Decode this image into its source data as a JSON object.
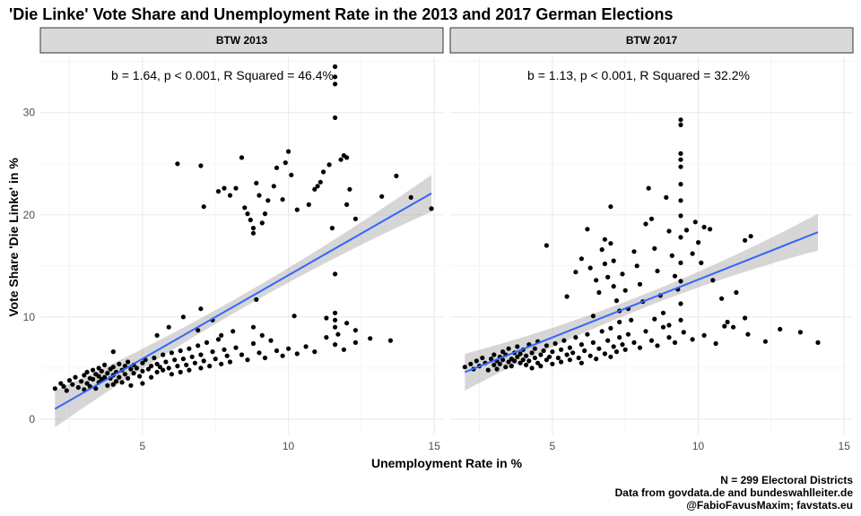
{
  "title": "'Die Linke' Vote Share and Unemployment Rate in the 2013 and 2017 German Elections",
  "caption_lines": [
    "N = 299 Electoral Districts",
    "Data from govdata.de and bundeswahlleiter.de",
    "@FabioFavusMaxim; favstats.eu"
  ],
  "chart_data": [
    {
      "type": "scatter",
      "title": "BTW 2013",
      "xlabel": "Unemployment Rate in %",
      "ylabel": "Vote Share 'Die Linke' in %",
      "xlim": [
        1.5,
        15.3
      ],
      "ylim": [
        -1.5,
        35.5
      ],
      "xticks": [
        5,
        10,
        15
      ],
      "yticks": [
        0,
        10,
        20,
        30
      ],
      "annotation": "b = 1.64, p < 0.001, R Squared = 46.4%",
      "fit_line": {
        "x": [
          2.0,
          14.9
        ],
        "y": [
          1.0,
          22.1
        ]
      },
      "colors": {
        "points": "#000000",
        "fit": "#3366ff",
        "band": "#999999"
      },
      "points": [
        [
          2.0,
          3.0
        ],
        [
          2.2,
          3.5
        ],
        [
          2.3,
          3.2
        ],
        [
          2.4,
          2.8
        ],
        [
          2.5,
          3.8
        ],
        [
          2.6,
          3.4
        ],
        [
          2.7,
          4.1
        ],
        [
          2.8,
          3.1
        ],
        [
          2.9,
          3.7
        ],
        [
          3.0,
          4.3
        ],
        [
          3.0,
          2.9
        ],
        [
          3.1,
          4.6
        ],
        [
          3.1,
          3.5
        ],
        [
          3.2,
          4.0
        ],
        [
          3.2,
          3.2
        ],
        [
          3.3,
          4.8
        ],
        [
          3.3,
          3.9
        ],
        [
          3.4,
          4.4
        ],
        [
          3.4,
          3.0
        ],
        [
          3.5,
          5.0
        ],
        [
          3.5,
          4.2
        ],
        [
          3.5,
          3.6
        ],
        [
          3.6,
          4.7
        ],
        [
          3.6,
          3.9
        ],
        [
          3.7,
          5.3
        ],
        [
          3.7,
          4.1
        ],
        [
          3.8,
          4.5
        ],
        [
          3.8,
          3.3
        ],
        [
          3.9,
          4.9
        ],
        [
          3.9,
          4.0
        ],
        [
          4.0,
          5.1
        ],
        [
          4.0,
          4.3
        ],
        [
          4.0,
          3.4
        ],
        [
          4.1,
          4.6
        ],
        [
          4.1,
          3.7
        ],
        [
          4.2,
          5.4
        ],
        [
          4.2,
          4.1
        ],
        [
          4.3,
          4.8
        ],
        [
          4.3,
          3.6
        ],
        [
          4.4,
          5.2
        ],
        [
          4.4,
          4.4
        ],
        [
          4.5,
          5.6
        ],
        [
          4.5,
          4.0
        ],
        [
          4.6,
          4.9
        ],
        [
          4.6,
          3.3
        ],
        [
          4.7,
          5.3
        ],
        [
          4.7,
          4.5
        ],
        [
          4.8,
          5.0
        ],
        [
          4.9,
          4.2
        ],
        [
          5.0,
          5.5
        ],
        [
          5.0,
          4.7
        ],
        [
          5.0,
          3.5
        ],
        [
          5.1,
          5.8
        ],
        [
          5.2,
          4.9
        ],
        [
          5.3,
          5.2
        ],
        [
          5.3,
          4.1
        ],
        [
          5.4,
          6.0
        ],
        [
          5.5,
          5.4
        ],
        [
          5.5,
          4.6
        ],
        [
          5.6,
          5.1
        ],
        [
          5.7,
          6.3
        ],
        [
          5.7,
          4.8
        ],
        [
          5.8,
          5.6
        ],
        [
          5.9,
          5.0
        ],
        [
          6.0,
          6.5
        ],
        [
          6.0,
          4.4
        ],
        [
          6.1,
          5.8
        ],
        [
          6.2,
          5.2
        ],
        [
          6.3,
          6.7
        ],
        [
          6.3,
          4.6
        ],
        [
          6.4,
          5.9
        ],
        [
          6.5,
          5.3
        ],
        [
          6.6,
          6.9
        ],
        [
          6.6,
          4.8
        ],
        [
          6.7,
          6.1
        ],
        [
          6.8,
          5.5
        ],
        [
          6.9,
          7.2
        ],
        [
          7.0,
          5.0
        ],
        [
          7.0,
          6.3
        ],
        [
          7.1,
          5.7
        ],
        [
          7.2,
          7.5
        ],
        [
          7.3,
          5.2
        ],
        [
          7.4,
          6.6
        ],
        [
          7.5,
          5.9
        ],
        [
          7.6,
          7.8
        ],
        [
          7.7,
          5.4
        ],
        [
          7.8,
          6.8
        ],
        [
          7.9,
          6.2
        ],
        [
          8.0,
          5.6
        ],
        [
          8.2,
          7.0
        ],
        [
          8.4,
          6.3
        ],
        [
          8.6,
          5.8
        ],
        [
          8.8,
          7.4
        ],
        [
          9.0,
          6.5
        ],
        [
          9.2,
          6.0
        ],
        [
          9.4,
          7.7
        ],
        [
          9.6,
          6.7
        ],
        [
          9.8,
          6.2
        ],
        [
          10.0,
          6.9
        ],
        [
          10.3,
          6.4
        ],
        [
          10.6,
          7.1
        ],
        [
          10.9,
          6.6
        ],
        [
          11.3,
          8.0
        ],
        [
          11.6,
          7.3
        ],
        [
          11.9,
          6.8
        ],
        [
          12.3,
          7.5
        ],
        [
          12.8,
          7.9
        ],
        [
          13.5,
          7.7
        ],
        [
          5.5,
          8.2
        ],
        [
          5.9,
          9.0
        ],
        [
          6.4,
          10.0
        ],
        [
          7.0,
          10.8
        ],
        [
          7.4,
          9.7
        ],
        [
          6.9,
          8.7
        ],
        [
          7.7,
          8.2
        ],
        [
          8.1,
          8.6
        ],
        [
          8.8,
          9.0
        ],
        [
          9.1,
          8.2
        ],
        [
          10.2,
          10.1
        ],
        [
          11.6,
          10.4
        ],
        [
          11.6,
          9.7
        ],
        [
          11.6,
          9.0
        ],
        [
          11.7,
          8.3
        ],
        [
          12.0,
          9.4
        ],
        [
          12.3,
          8.7
        ],
        [
          11.3,
          9.9
        ],
        [
          8.9,
          11.7
        ],
        [
          4.0,
          6.6
        ],
        [
          6.2,
          25.0
        ],
        [
          7.0,
          24.8
        ],
        [
          7.1,
          20.8
        ],
        [
          7.6,
          22.3
        ],
        [
          7.8,
          22.6
        ],
        [
          8.0,
          21.9
        ],
        [
          8.2,
          22.6
        ],
        [
          8.4,
          25.6
        ],
        [
          8.5,
          20.7
        ],
        [
          8.6,
          20.1
        ],
        [
          8.7,
          19.5
        ],
        [
          8.8,
          18.7
        ],
        [
          8.8,
          18.2
        ],
        [
          8.9,
          23.1
        ],
        [
          9.0,
          21.9
        ],
        [
          9.1,
          19.2
        ],
        [
          9.2,
          20.1
        ],
        [
          9.3,
          21.4
        ],
        [
          9.5,
          22.8
        ],
        [
          9.6,
          24.6
        ],
        [
          9.8,
          21.5
        ],
        [
          9.9,
          25.1
        ],
        [
          10.0,
          26.2
        ],
        [
          10.1,
          23.9
        ],
        [
          10.3,
          20.5
        ],
        [
          10.7,
          21.0
        ],
        [
          10.9,
          22.5
        ],
        [
          11.0,
          22.8
        ],
        [
          11.1,
          23.2
        ],
        [
          11.2,
          24.2
        ],
        [
          11.4,
          24.9
        ],
        [
          11.5,
          18.7
        ],
        [
          11.6,
          29.5
        ],
        [
          11.6,
          32.8
        ],
        [
          11.6,
          33.5
        ],
        [
          11.6,
          34.5
        ],
        [
          11.8,
          25.4
        ],
        [
          11.9,
          25.8
        ],
        [
          12.0,
          25.6
        ],
        [
          12.1,
          22.5
        ],
        [
          12.3,
          19.6
        ],
        [
          12.0,
          21.0
        ],
        [
          13.2,
          21.8
        ],
        [
          13.7,
          23.8
        ],
        [
          14.2,
          21.7
        ],
        [
          14.9,
          20.6
        ],
        [
          11.6,
          14.2
        ]
      ]
    },
    {
      "type": "scatter",
      "title": "BTW 2017",
      "xlabel": "Unemployment Rate in %",
      "ylabel": "Vote Share 'Die Linke' in %",
      "xlim": [
        1.5,
        15.3
      ],
      "ylim": [
        -1.5,
        35.5
      ],
      "xticks": [
        5,
        10,
        15
      ],
      "yticks": [
        0,
        10,
        20,
        30
      ],
      "annotation": "b = 1.13, p < 0.001, R Squared = 32.2%",
      "fit_line": {
        "x": [
          2.0,
          14.1
        ],
        "y": [
          4.6,
          18.3
        ]
      },
      "colors": {
        "points": "#000000",
        "fit": "#3366ff",
        "band": "#999999"
      },
      "points": [
        [
          2.0,
          5.1
        ],
        [
          2.2,
          5.4
        ],
        [
          2.3,
          4.9
        ],
        [
          2.4,
          5.7
        ],
        [
          2.5,
          5.2
        ],
        [
          2.6,
          6.0
        ],
        [
          2.7,
          5.5
        ],
        [
          2.8,
          4.8
        ],
        [
          2.9,
          5.9
        ],
        [
          3.0,
          5.3
        ],
        [
          3.0,
          6.3
        ],
        [
          3.1,
          5.7
        ],
        [
          3.1,
          4.9
        ],
        [
          3.2,
          6.1
        ],
        [
          3.2,
          5.4
        ],
        [
          3.3,
          6.6
        ],
        [
          3.3,
          5.8
        ],
        [
          3.4,
          5.1
        ],
        [
          3.4,
          6.3
        ],
        [
          3.5,
          5.6
        ],
        [
          3.5,
          6.9
        ],
        [
          3.6,
          5.9
        ],
        [
          3.6,
          5.2
        ],
        [
          3.7,
          6.5
        ],
        [
          3.7,
          5.7
        ],
        [
          3.8,
          6.1
        ],
        [
          3.8,
          7.1
        ],
        [
          3.9,
          5.5
        ],
        [
          3.9,
          6.4
        ],
        [
          4.0,
          5.8
        ],
        [
          4.0,
          6.8
        ],
        [
          4.1,
          5.3
        ],
        [
          4.1,
          6.2
        ],
        [
          4.2,
          7.3
        ],
        [
          4.2,
          5.7
        ],
        [
          4.3,
          6.5
        ],
        [
          4.3,
          5.0
        ],
        [
          4.4,
          6.0
        ],
        [
          4.4,
          6.9
        ],
        [
          4.5,
          5.5
        ],
        [
          4.5,
          7.6
        ],
        [
          4.6,
          6.3
        ],
        [
          4.6,
          5.2
        ],
        [
          4.7,
          6.7
        ],
        [
          4.8,
          5.8
        ],
        [
          4.8,
          7.2
        ],
        [
          4.9,
          6.1
        ],
        [
          5.0,
          6.6
        ],
        [
          5.0,
          5.4
        ],
        [
          5.1,
          7.4
        ],
        [
          5.2,
          6.0
        ],
        [
          5.3,
          6.8
        ],
        [
          5.3,
          5.6
        ],
        [
          5.4,
          7.7
        ],
        [
          5.5,
          6.3
        ],
        [
          5.6,
          5.8
        ],
        [
          5.6,
          7.0
        ],
        [
          5.7,
          6.5
        ],
        [
          5.8,
          8.0
        ],
        [
          5.9,
          6.0
        ],
        [
          6.0,
          7.3
        ],
        [
          6.0,
          5.5
        ],
        [
          6.1,
          6.7
        ],
        [
          6.2,
          8.3
        ],
        [
          6.3,
          6.2
        ],
        [
          6.4,
          7.5
        ],
        [
          6.5,
          5.9
        ],
        [
          6.6,
          6.9
        ],
        [
          6.7,
          8.6
        ],
        [
          6.8,
          6.4
        ],
        [
          6.9,
          7.7
        ],
        [
          7.0,
          6.1
        ],
        [
          7.0,
          8.9
        ],
        [
          7.1,
          7.1
        ],
        [
          7.2,
          6.6
        ],
        [
          7.3,
          8.0
        ],
        [
          7.4,
          7.3
        ],
        [
          7.5,
          6.8
        ],
        [
          7.6,
          8.3
        ],
        [
          7.8,
          7.5
        ],
        [
          8.0,
          7.0
        ],
        [
          8.2,
          8.6
        ],
        [
          8.4,
          7.7
        ],
        [
          8.6,
          7.2
        ],
        [
          8.8,
          9.0
        ],
        [
          9.0,
          8.0
        ],
        [
          9.2,
          7.5
        ],
        [
          9.5,
          8.5
        ],
        [
          9.8,
          7.8
        ],
        [
          10.2,
          8.2
        ],
        [
          10.6,
          7.4
        ],
        [
          11.2,
          9.0
        ],
        [
          11.7,
          8.3
        ],
        [
          12.3,
          7.6
        ],
        [
          12.8,
          8.8
        ],
        [
          13.5,
          8.5
        ],
        [
          14.1,
          7.5
        ],
        [
          4.8,
          17.0
        ],
        [
          5.5,
          12.0
        ],
        [
          5.8,
          14.4
        ],
        [
          6.0,
          15.7
        ],
        [
          6.2,
          18.6
        ],
        [
          6.3,
          14.8
        ],
        [
          6.5,
          13.6
        ],
        [
          6.6,
          12.4
        ],
        [
          6.7,
          16.6
        ],
        [
          6.8,
          17.6
        ],
        [
          6.8,
          15.2
        ],
        [
          6.9,
          13.9
        ],
        [
          7.0,
          20.8
        ],
        [
          7.0,
          17.2
        ],
        [
          7.1,
          15.5
        ],
        [
          7.1,
          13.0
        ],
        [
          7.2,
          11.6
        ],
        [
          7.3,
          10.6
        ],
        [
          7.3,
          9.5
        ],
        [
          7.4,
          14.2
        ],
        [
          7.5,
          12.6
        ],
        [
          7.6,
          10.8
        ],
        [
          7.7,
          9.7
        ],
        [
          7.8,
          16.4
        ],
        [
          7.9,
          15.0
        ],
        [
          8.0,
          13.2
        ],
        [
          8.1,
          11.5
        ],
        [
          8.2,
          19.1
        ],
        [
          8.3,
          22.6
        ],
        [
          8.4,
          19.6
        ],
        [
          8.5,
          16.7
        ],
        [
          8.6,
          14.5
        ],
        [
          8.7,
          12.1
        ],
        [
          8.8,
          10.4
        ],
        [
          8.9,
          21.7
        ],
        [
          9.0,
          18.4
        ],
        [
          9.1,
          16.0
        ],
        [
          9.2,
          14.0
        ],
        [
          9.3,
          12.7
        ],
        [
          9.4,
          29.3
        ],
        [
          9.4,
          28.8
        ],
        [
          9.4,
          26.0
        ],
        [
          9.4,
          25.4
        ],
        [
          9.4,
          24.7
        ],
        [
          9.4,
          23.0
        ],
        [
          9.4,
          21.4
        ],
        [
          9.4,
          19.9
        ],
        [
          9.4,
          17.8
        ],
        [
          9.4,
          15.3
        ],
        [
          9.4,
          13.5
        ],
        [
          9.4,
          11.3
        ],
        [
          9.4,
          9.7
        ],
        [
          9.6,
          18.5
        ],
        [
          9.8,
          16.2
        ],
        [
          9.9,
          19.3
        ],
        [
          10.0,
          17.3
        ],
        [
          10.1,
          15.3
        ],
        [
          10.2,
          18.8
        ],
        [
          10.4,
          18.6
        ],
        [
          10.5,
          13.6
        ],
        [
          10.8,
          11.8
        ],
        [
          11.0,
          9.5
        ],
        [
          11.3,
          12.4
        ],
        [
          11.6,
          9.9
        ],
        [
          11.6,
          17.5
        ],
        [
          11.8,
          17.9
        ],
        [
          9.0,
          9.2
        ],
        [
          8.5,
          9.8
        ],
        [
          10.9,
          9.1
        ],
        [
          6.4,
          10.1
        ]
      ]
    }
  ]
}
